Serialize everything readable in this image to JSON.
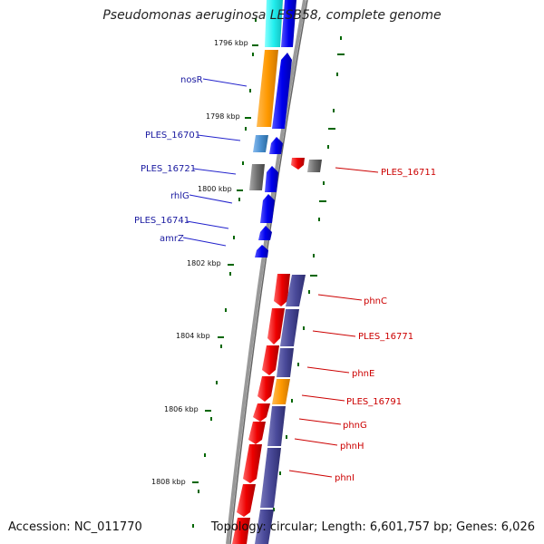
{
  "title": "Pseudomonas aeruginosa LESB58, complete genome",
  "footer": {
    "accession": "Accession: NC_011770",
    "topology": "Topology: circular; Length: 6,601,757 bp; Genes: 6,026"
  },
  "scale": [
    "1796 kbp",
    "1798 kbp",
    "1800 kbp",
    "1802 kbp",
    "1804 kbp",
    "1806 kbp",
    "1808 kbp"
  ],
  "left_genes": [
    "nosR",
    "PLES_16701",
    "PLES_16721",
    "rhlG",
    "PLES_16741",
    "amrZ"
  ],
  "right_genes": [
    "PLES_16711",
    "phnC",
    "PLES_16771",
    "phnE",
    "PLES_16791",
    "phnG",
    "phnH",
    "phnI"
  ],
  "colors": {
    "strand_blue": "#0000ee",
    "strand_red": "#ee0000",
    "cog_cyan": "#33eeee",
    "cog_orange": "#ff9900",
    "cog_purple": "#4a4a9a",
    "cog_gray": "#707070",
    "cog_lightblue": "#4a90d0",
    "backbone": "#999999",
    "tick": "#006600"
  }
}
